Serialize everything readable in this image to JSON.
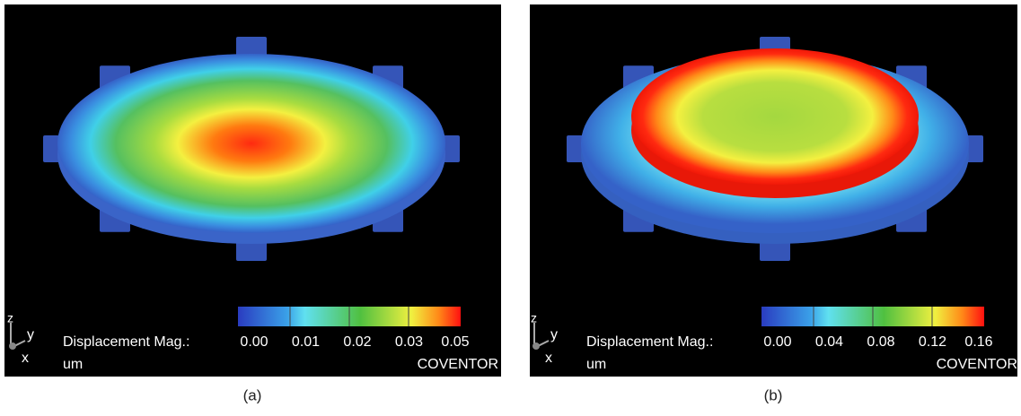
{
  "panels": [
    {
      "caption": "(a)",
      "legend_label": "Displacement Mag.:",
      "unit": "um",
      "brand": "COVENTOR",
      "axes": {
        "z": "z",
        "y": "y",
        "x": "x"
      },
      "colorbar_labels": [
        "0.00",
        "0.01",
        "0.02",
        "0.03",
        "0.05"
      ]
    },
    {
      "caption": "(b)",
      "legend_label": "Displacement Mag.:",
      "unit": "um",
      "brand": "COVENTOR",
      "axes": {
        "z": "z",
        "y": "y",
        "x": "x"
      },
      "colorbar_labels": [
        "0.00",
        "0.04",
        "0.08",
        "0.12",
        "0.16"
      ]
    }
  ]
}
